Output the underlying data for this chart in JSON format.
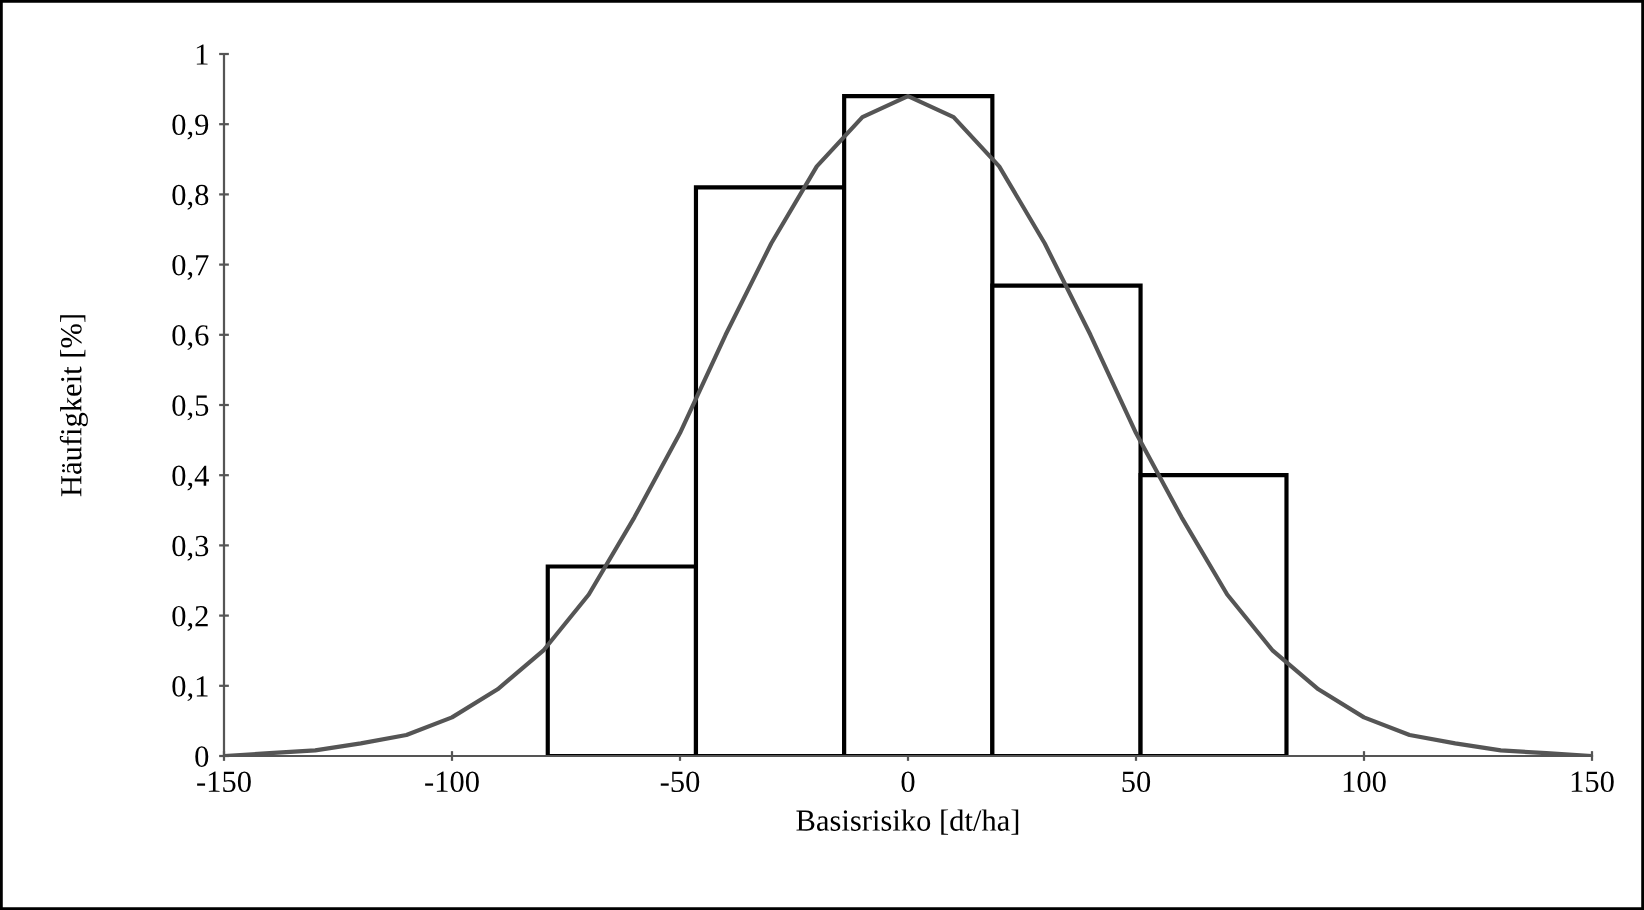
{
  "chart_data": {
    "type": "histogram",
    "xlabel": "Basisrisiko [dt/ha]",
    "ylabel": "Häufigkeit [%]",
    "series": [
      {
        "bins": [
          -79,
          -46.5,
          -14,
          18.5,
          51,
          83
        ],
        "values": [
          0.27,
          0.81,
          0.94,
          0.67,
          0.4
        ],
        "color": "#000000"
      },
      {
        "type": "line",
        "color": "#555555",
        "x": [
          -150,
          -140,
          -130,
          -120,
          -110,
          -100,
          -90,
          -80,
          -70,
          -60,
          -50,
          -40,
          -30,
          -20,
          -10,
          0,
          10,
          20,
          30,
          40,
          50,
          60,
          70,
          80,
          90,
          100,
          110,
          120,
          130,
          140,
          150
        ],
        "values": [
          0.0,
          0.004,
          0.008,
          0.018,
          0.03,
          0.055,
          0.095,
          0.15,
          0.23,
          0.34,
          0.46,
          0.6,
          0.73,
          0.84,
          0.91,
          0.94,
          0.91,
          0.84,
          0.73,
          0.6,
          0.46,
          0.34,
          0.23,
          0.15,
          0.095,
          0.055,
          0.03,
          0.018,
          0.008,
          0.004,
          0.0
        ]
      }
    ],
    "xlim": [
      -150,
      150
    ],
    "xticks": [
      -150,
      -100,
      -50,
      0,
      50,
      100,
      150
    ],
    "ylim": [
      0,
      1
    ],
    "yticks": [
      0,
      {
        "value": 0.1,
        "label": "0,1"
      },
      {
        "value": 0.2,
        "label": "0,2"
      },
      {
        "value": 0.3,
        "label": "0,3"
      },
      {
        "value": 0.4,
        "label": "0,4"
      },
      {
        "value": 0.5,
        "label": "0,5"
      },
      {
        "value": 0.6,
        "label": "0,6"
      },
      {
        "value": 0.7,
        "label": "0,7"
      },
      {
        "value": 0.8,
        "label": "0,8"
      },
      {
        "value": 0.9,
        "label": "0,9"
      },
      1
    ],
    "grid": false,
    "legend": false
  }
}
